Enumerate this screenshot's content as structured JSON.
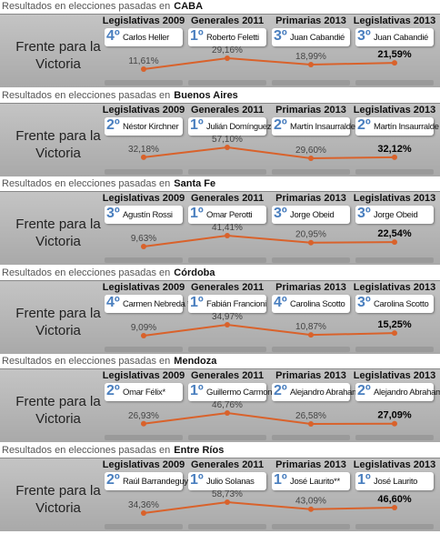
{
  "chart_data": [
    {
      "type": "line",
      "title": "Resultados en elecciones pasadas en",
      "subtitle": "CABA",
      "categories": [
        "Legislativas 2009",
        "Generales 2011",
        "Primarias 2013",
        "Legislativas 2013"
      ],
      "ranks": [
        "4º",
        "1º",
        "3º",
        "3º"
      ],
      "candidates": [
        "Carlos Heller",
        "Roberto Feletti",
        "Juan Cabandié",
        "Juan Cabandié"
      ],
      "series": [
        {
          "name": "Frente para la Victoria",
          "color": "#d9622b",
          "values": [
            11.61,
            29.16,
            18.99,
            21.59
          ],
          "value_labels": [
            "11,61%",
            "29,16%",
            "18,99%",
            "21,59%"
          ]
        }
      ]
    },
    {
      "type": "line",
      "title": "Resultados en elecciones pasadas en",
      "subtitle": "Buenos Aires",
      "categories": [
        "Legislativas 2009",
        "Generales 2011",
        "Primarias 2013",
        "Legislativas 2013"
      ],
      "ranks": [
        "2º",
        "1º",
        "2º",
        "2º"
      ],
      "candidates": [
        "Néstor Kirchner",
        "Julián Domínguez",
        "Martín Insaurralde",
        "Martín Insaurralde"
      ],
      "series": [
        {
          "name": "Frente para la Victoria",
          "color": "#d9622b",
          "values": [
            32.18,
            57.1,
            29.6,
            32.12
          ],
          "value_labels": [
            "32,18%",
            "57,10%",
            "29,60%",
            "32,12%"
          ]
        }
      ]
    },
    {
      "type": "line",
      "title": "Resultados en elecciones pasadas en",
      "subtitle": "Santa Fe",
      "categories": [
        "Legislativas 2009",
        "Generales 2011",
        "Primarias 2013",
        "Legislativas 2013"
      ],
      "ranks": [
        "3º",
        "1º",
        "3º",
        "3º"
      ],
      "candidates": [
        "Agustín Rossi",
        "Omar Perotti",
        "Jorge Obeid",
        "Jorge Obeid"
      ],
      "series": [
        {
          "name": "Frente para la Victoria",
          "color": "#d9622b",
          "values": [
            9.63,
            41.41,
            20.95,
            22.54
          ],
          "value_labels": [
            "9,63%",
            "41,41%",
            "20,95%",
            "22,54%"
          ]
        }
      ]
    },
    {
      "type": "line",
      "title": "Resultados en elecciones pasadas en",
      "subtitle": "Córdoba",
      "categories": [
        "Legislativas 2009",
        "Generales 2011",
        "Primarias 2013",
        "Legislativas 2013"
      ],
      "ranks": [
        "4º",
        "1º",
        "4º",
        "3º"
      ],
      "candidates": [
        "Carmen Nebreda *",
        "Fabián Francioni",
        "Carolina Scotto",
        "Carolina Scotto"
      ],
      "series": [
        {
          "name": "Frente para la Victoria",
          "color": "#d9622b",
          "values": [
            9.09,
            34.97,
            10.87,
            15.25
          ],
          "value_labels": [
            "9,09%",
            "34,97%",
            "10,87%",
            "15,25%"
          ]
        }
      ]
    },
    {
      "type": "line",
      "title": "Resultados en elecciones pasadas en",
      "subtitle": "Mendoza",
      "categories": [
        "Legislativas 2009",
        "Generales 2011",
        "Primarias 2013",
        "Legislativas 2013"
      ],
      "ranks": [
        "2º",
        "1º",
        "2º",
        "2º"
      ],
      "candidates": [
        "Omar Félix*",
        "Guillermo Carmona",
        "Alejandro Abraham",
        "Alejandro Abraham"
      ],
      "series": [
        {
          "name": "Frente para la Victoria",
          "color": "#d9622b",
          "values": [
            26.93,
            46.76,
            26.58,
            27.09
          ],
          "value_labels": [
            "26,93%",
            "46,76%",
            "26,58%",
            "27,09%"
          ]
        }
      ]
    },
    {
      "type": "line",
      "title": "Resultados en elecciones pasadas en",
      "subtitle": "Entre Ríos",
      "categories": [
        "Legislativas 2009",
        "Generales 2011",
        "Primarias 2013",
        "Legislativas 2013"
      ],
      "ranks": [
        "2º",
        "1º",
        "1º",
        "1º"
      ],
      "candidates": [
        "Raúl Barrandeguy*",
        "Julio Solanas",
        "José Laurito**",
        "José Laurito"
      ],
      "series": [
        {
          "name": "Frente para la Victoria",
          "color": "#d9622b",
          "values": [
            34.36,
            58.73,
            43.09,
            46.6
          ],
          "value_labels": [
            "34,36%",
            "58,73%",
            "43,09%",
            "46,60%"
          ]
        }
      ]
    }
  ]
}
